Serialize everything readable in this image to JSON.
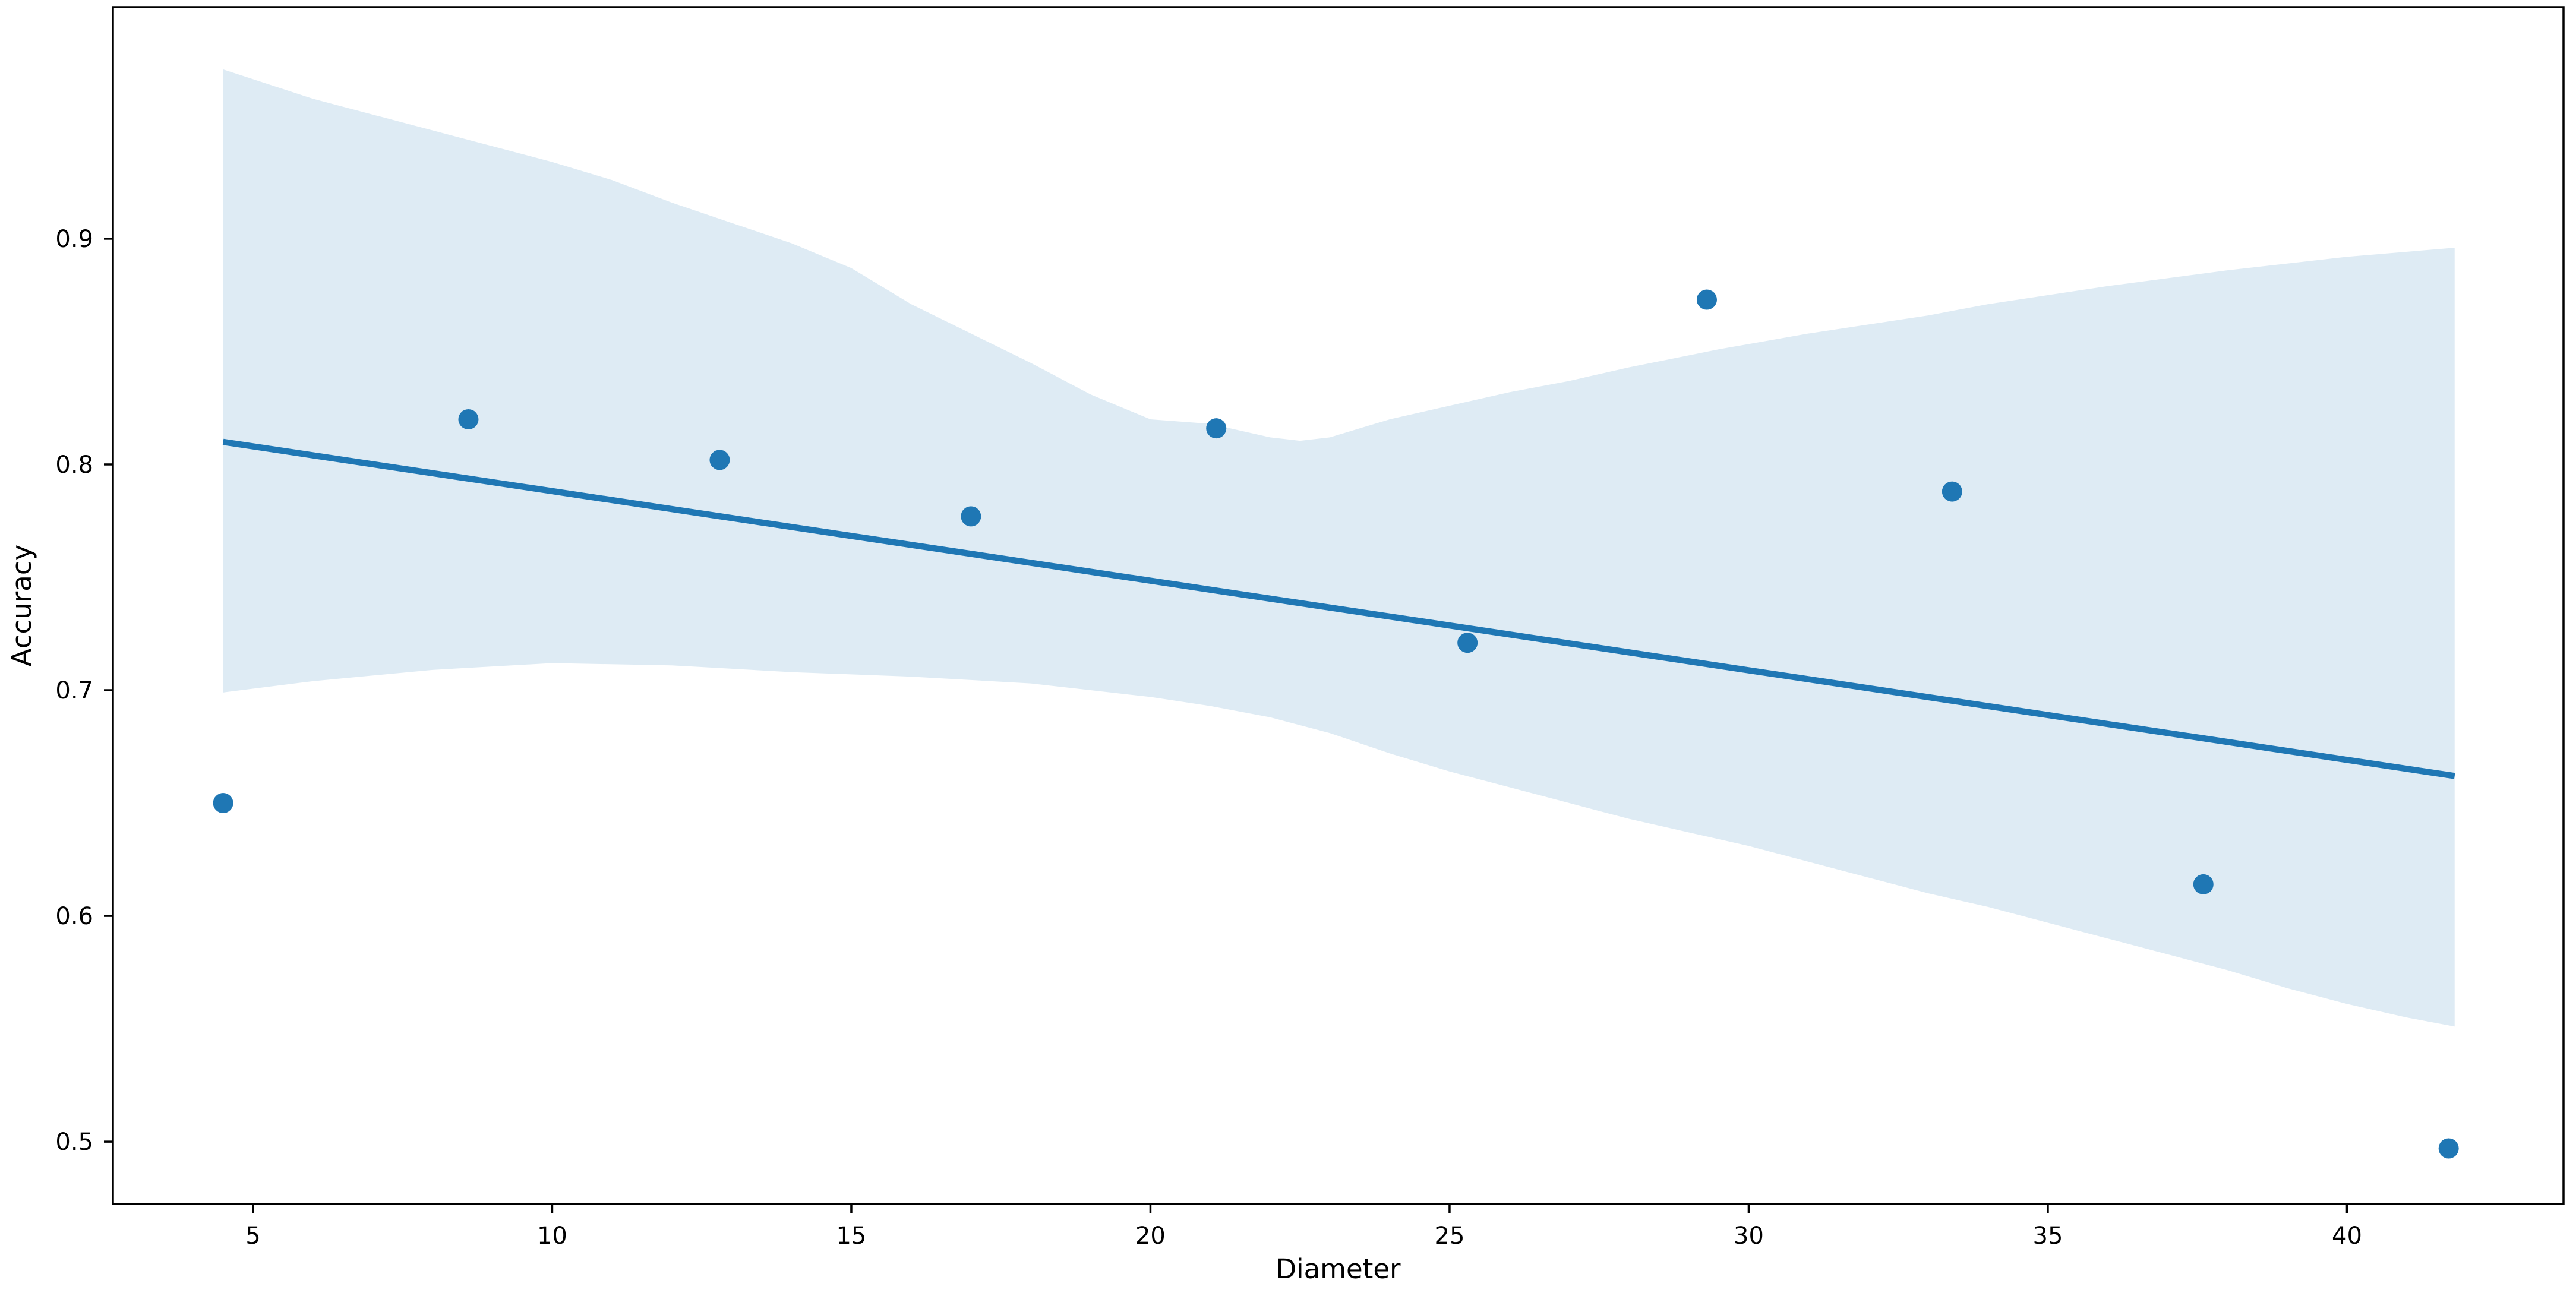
{
  "figure": {
    "background": "#ffffff"
  },
  "chart_data": {
    "type": "scatter",
    "title": "",
    "xlabel": "Diameter",
    "ylabel": "Accuracy",
    "xlim": [
      2.657,
      43.62
    ],
    "ylim": [
      0.4724,
      1.0026
    ],
    "x_ticks": [
      5,
      10,
      15,
      20,
      25,
      30,
      35,
      40
    ],
    "y_ticks": [
      0.5,
      0.6,
      0.7,
      0.8,
      0.9
    ],
    "grid": false,
    "legend": null,
    "points": [
      [
        4.5,
        0.65
      ],
      [
        8.6,
        0.82
      ],
      [
        12.8,
        0.802
      ],
      [
        17.0,
        0.777
      ],
      [
        21.1,
        0.816
      ],
      [
        25.3,
        0.721
      ],
      [
        29.3,
        0.873
      ],
      [
        33.4,
        0.788
      ],
      [
        37.6,
        0.614
      ],
      [
        41.7,
        0.497
      ]
    ],
    "regression_line": {
      "x": [
        4.5,
        41.8
      ],
      "y": [
        0.81,
        0.662
      ]
    },
    "ci_band": {
      "upper": [
        [
          4.5,
          0.975
        ],
        [
          6,
          0.962
        ],
        [
          8,
          0.948
        ],
        [
          10,
          0.934
        ],
        [
          11,
          0.926
        ],
        [
          12,
          0.916
        ],
        [
          13,
          0.907
        ],
        [
          14,
          0.898
        ],
        [
          15,
          0.887
        ],
        [
          16,
          0.871
        ],
        [
          17,
          0.858
        ],
        [
          18,
          0.845
        ],
        [
          19,
          0.831
        ],
        [
          20,
          0.82
        ],
        [
          21,
          0.818
        ],
        [
          22,
          0.812
        ],
        [
          22.5,
          0.8105
        ],
        [
          23,
          0.812
        ],
        [
          24,
          0.82
        ],
        [
          25,
          0.826
        ],
        [
          26,
          0.832
        ],
        [
          27,
          0.837
        ],
        [
          28,
          0.843
        ],
        [
          29.5,
          0.851
        ],
        [
          31,
          0.858
        ],
        [
          33,
          0.866
        ],
        [
          34,
          0.871
        ],
        [
          36,
          0.879
        ],
        [
          38,
          0.886
        ],
        [
          40,
          0.892
        ],
        [
          41.8,
          0.896
        ]
      ],
      "lower": [
        [
          4.5,
          0.699
        ],
        [
          6,
          0.704
        ],
        [
          8,
          0.709
        ],
        [
          10,
          0.712
        ],
        [
          12,
          0.711
        ],
        [
          14,
          0.708
        ],
        [
          16,
          0.706
        ],
        [
          18,
          0.703
        ],
        [
          19,
          0.7
        ],
        [
          20,
          0.697
        ],
        [
          21,
          0.693
        ],
        [
          22,
          0.688
        ],
        [
          23,
          0.681
        ],
        [
          24,
          0.672
        ],
        [
          25,
          0.664
        ],
        [
          26,
          0.657
        ],
        [
          27,
          0.65
        ],
        [
          28,
          0.643
        ],
        [
          29,
          0.637
        ],
        [
          30,
          0.631
        ],
        [
          31,
          0.624
        ],
        [
          32,
          0.617
        ],
        [
          33,
          0.61
        ],
        [
          34,
          0.604
        ],
        [
          35,
          0.597
        ],
        [
          36,
          0.59
        ],
        [
          37,
          0.583
        ],
        [
          38,
          0.576
        ],
        [
          39,
          0.568
        ],
        [
          40,
          0.561
        ],
        [
          41,
          0.555
        ],
        [
          41.8,
          0.551
        ]
      ]
    },
    "style": {
      "scatter_color": "#1f77b4",
      "line_color": "#1f77b4",
      "band_color": "#1f77b4",
      "band_alpha": 0.15,
      "spine_color": "#000000",
      "tick_color": "#000000",
      "marker_radius": 17,
      "line_width": 10.5,
      "spine_width": 3.5,
      "tick_length": 15
    }
  }
}
